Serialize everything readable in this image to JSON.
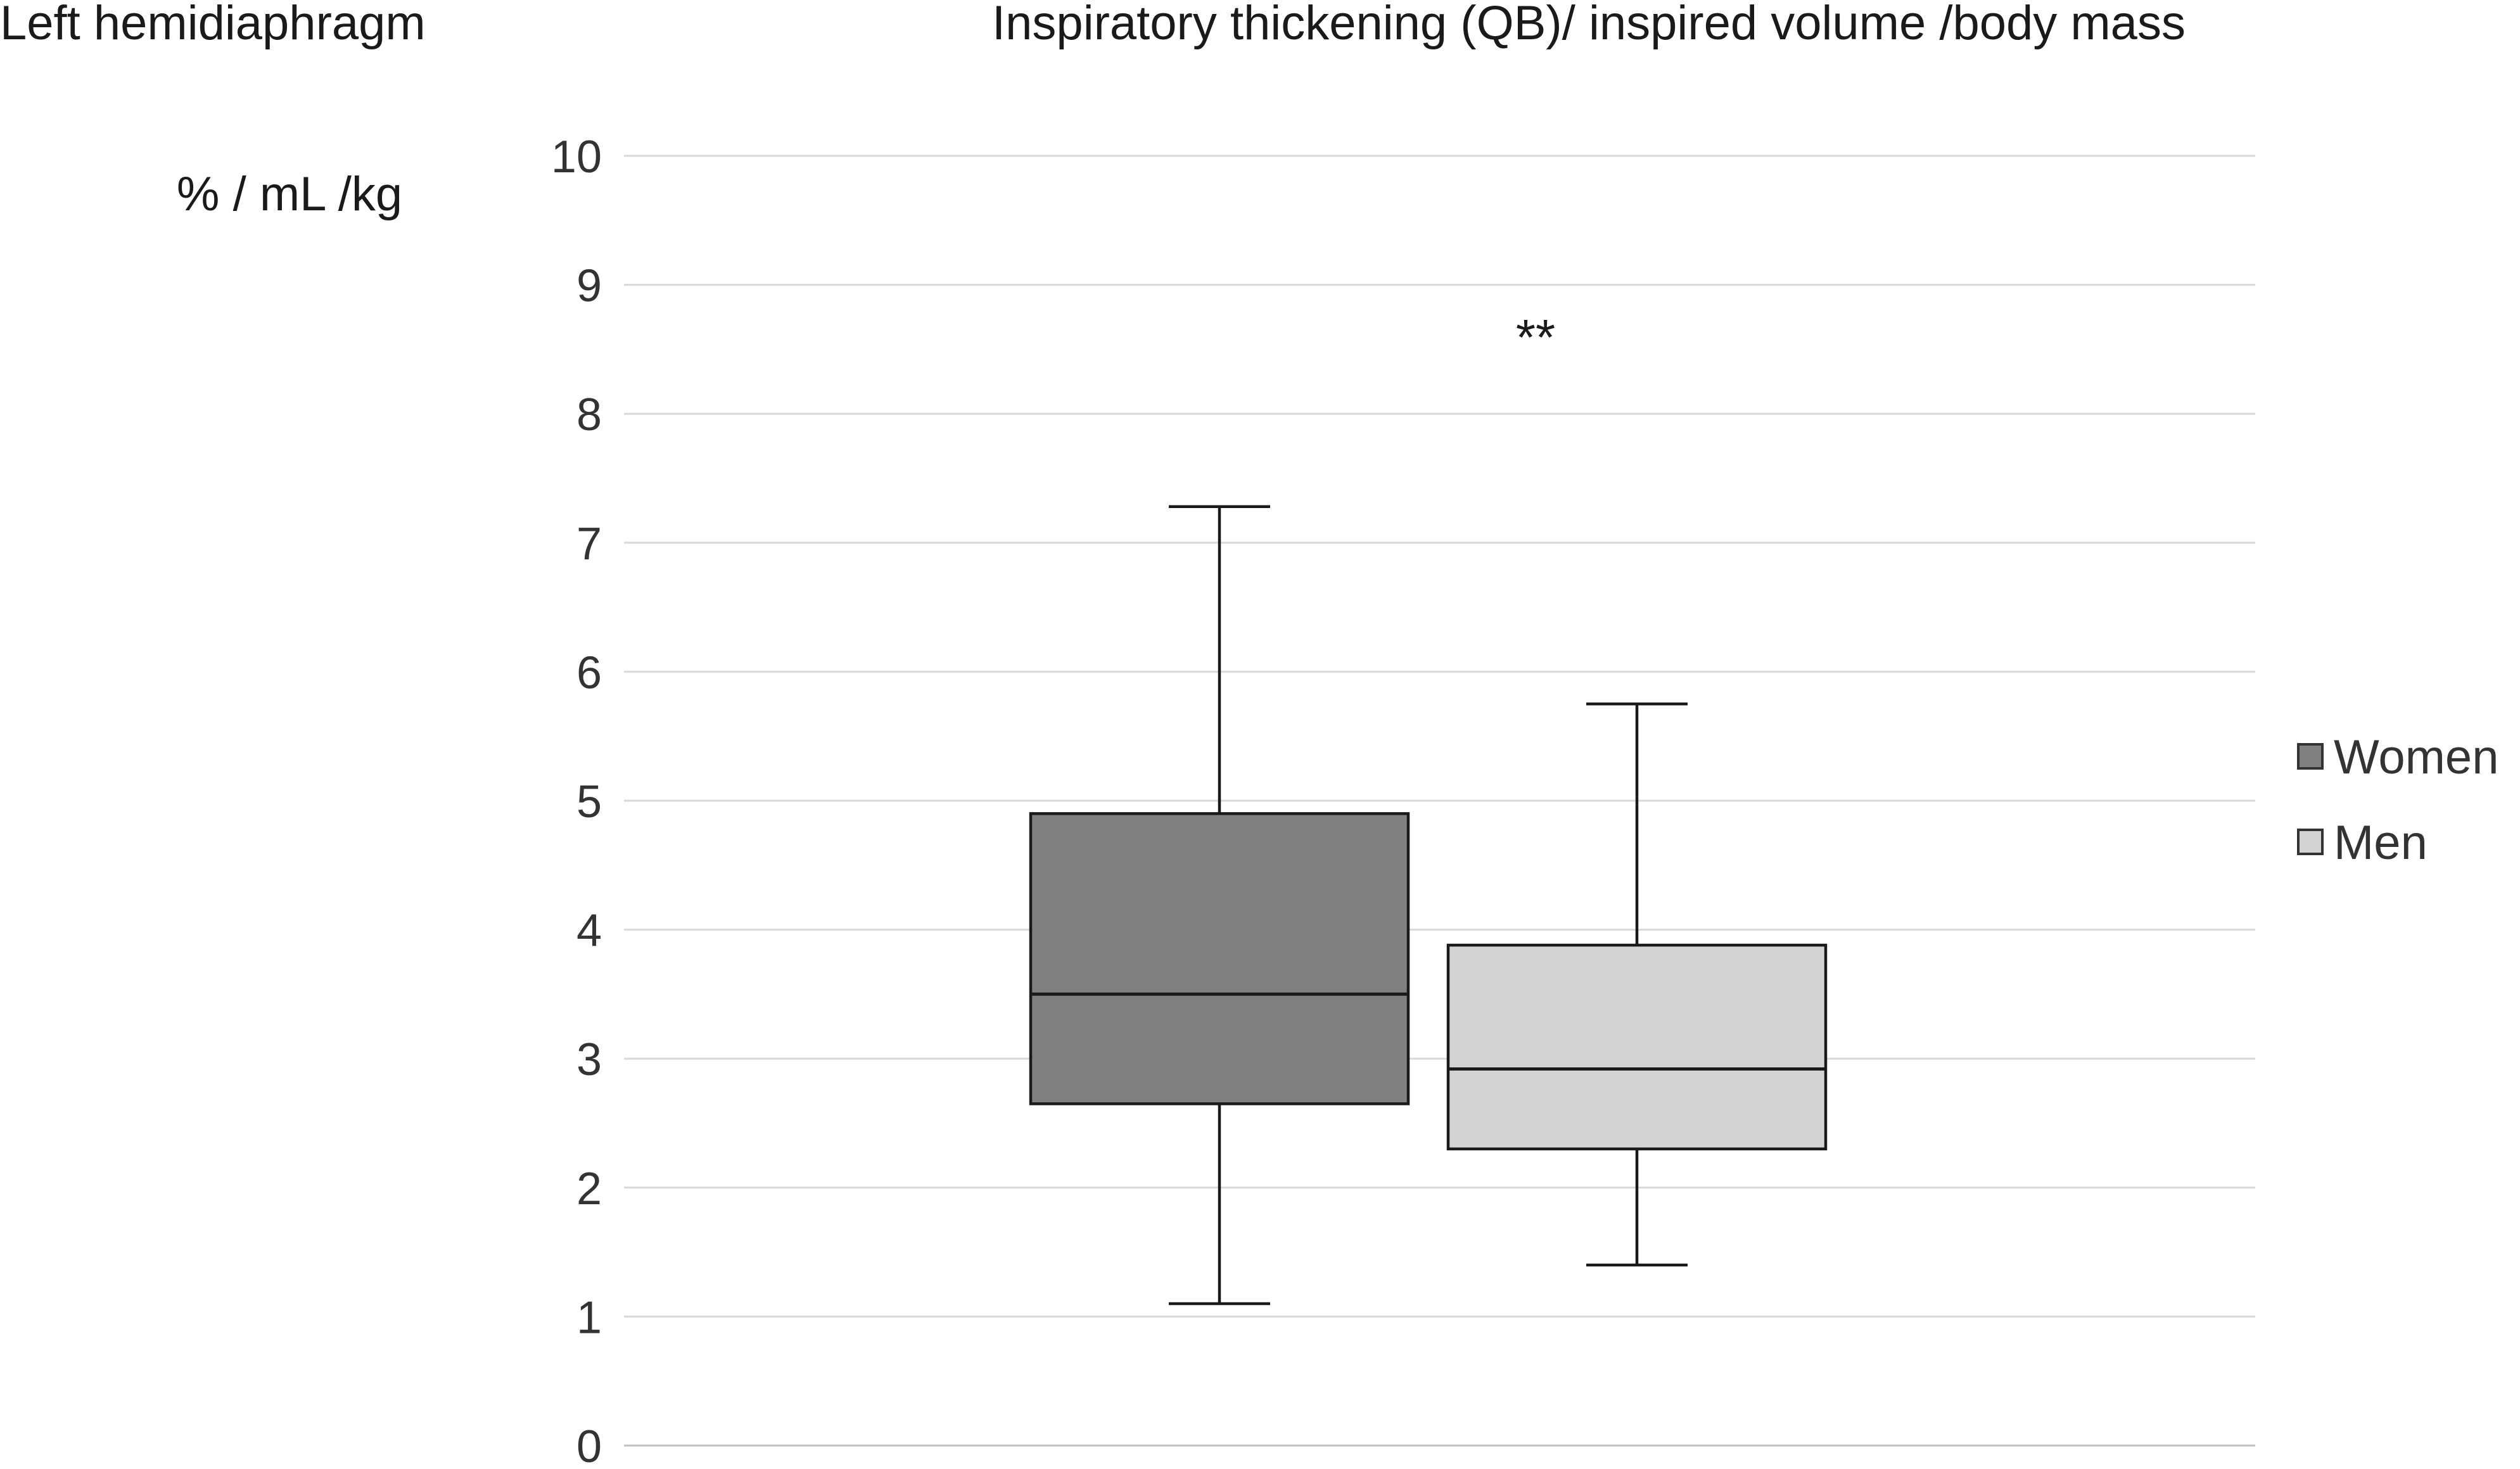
{
  "chart_data": {
    "type": "boxplot",
    "panel_label": "Left hemidiaphragm",
    "title": "Inspiratory thickening (QB)/ inspired volume /body mass",
    "ylabel": "% / mL /kg",
    "ylim": [
      0,
      10
    ],
    "yticks": [
      "0",
      "1",
      "2",
      "3",
      "4",
      "5",
      "6",
      "7",
      "8",
      "9",
      "10"
    ],
    "grid": true,
    "legend_position": "right",
    "annotation": "**",
    "series": [
      {
        "name": "Women",
        "color": "#808080",
        "min": 1.1,
        "q1": 2.65,
        "median": 3.5,
        "q3": 4.9,
        "max": 7.28
      },
      {
        "name": "Men",
        "color": "#d3d3d3",
        "min": 1.4,
        "q1": 2.3,
        "median": 2.92,
        "q3": 3.88,
        "max": 5.75
      }
    ]
  }
}
